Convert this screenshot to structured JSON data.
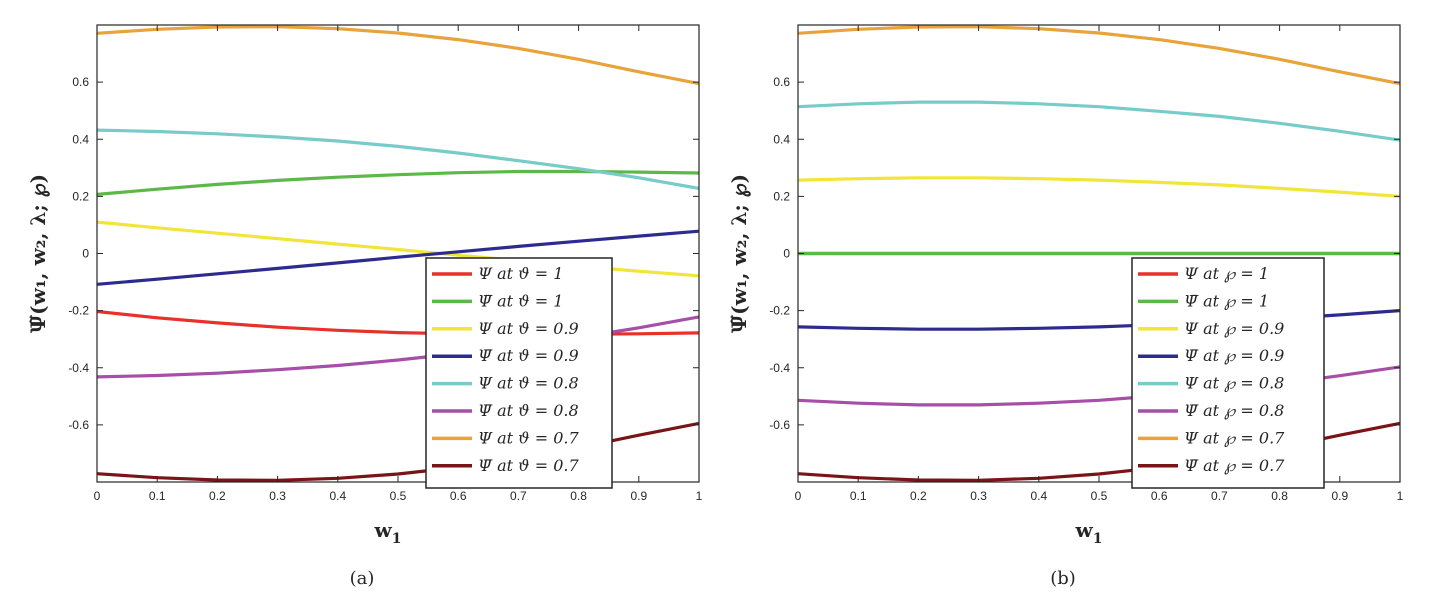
{
  "chart_data": [
    {
      "type": "line",
      "caption": "(a)",
      "xlabel": "w",
      "xlabel_sub": "1",
      "ylabel": "Ψ̃(w₁, w₂, λ; ℘)",
      "xlim": [
        0,
        1
      ],
      "ylim": [
        -0.8,
        0.8
      ],
      "xticks": [
        "0",
        "0.1",
        "0.2",
        "0.3",
        "0.4",
        "0.5",
        "0.6",
        "0.7",
        "0.8",
        "0.9",
        "1"
      ],
      "yticks": [
        "-0.6",
        "-0.4",
        "-0.2",
        "0",
        "0.2",
        "0.4",
        "0.6"
      ],
      "grid": false,
      "legend_position": "bottom-right",
      "x": [
        0,
        0.1,
        0.2,
        0.3,
        0.4,
        0.5,
        0.6,
        0.7,
        0.8,
        0.9,
        1
      ],
      "series": [
        {
          "name": "Ψ at ϑ = 1",
          "color": "#e8312a",
          "values": [
            -0.203,
            -0.225,
            -0.243,
            -0.258,
            -0.269,
            -0.277,
            -0.281,
            -0.284,
            -0.283,
            -0.281,
            -0.278
          ]
        },
        {
          "name": "Ψ̄ at ϑ = 1",
          "color": "#5db84a",
          "values": [
            0.207,
            0.225,
            0.242,
            0.256,
            0.267,
            0.276,
            0.283,
            0.287,
            0.287,
            0.285,
            0.282
          ]
        },
        {
          "name": "Ψ at ϑ = 0.9",
          "color": "#f2e53a",
          "values": [
            0.11,
            0.09,
            0.071,
            0.052,
            0.033,
            0.014,
            -0.006,
            -0.025,
            -0.044,
            -0.062,
            -0.078
          ]
        },
        {
          "name": "Ψ̄ at ϑ = 0.9",
          "color": "#2e2b8f",
          "values": [
            -0.108,
            -0.09,
            -0.071,
            -0.052,
            -0.033,
            -0.013,
            0.006,
            0.025,
            0.043,
            0.061,
            0.078
          ]
        },
        {
          "name": "Ψ at ϑ = 0.8",
          "color": "#77cbc8",
          "values": [
            0.432,
            0.427,
            0.419,
            0.408,
            0.394,
            0.375,
            0.352,
            0.325,
            0.297,
            0.265,
            0.228
          ]
        },
        {
          "name": "Ψ̄ at ϑ = 0.8",
          "color": "#a64ea8",
          "values": [
            -0.432,
            -0.427,
            -0.419,
            -0.407,
            -0.392,
            -0.373,
            -0.35,
            -0.324,
            -0.294,
            -0.26,
            -0.222
          ]
        },
        {
          "name": "Ψ at ϑ = 0.7",
          "color": "#e8a33a",
          "values": [
            0.771,
            0.785,
            0.793,
            0.794,
            0.787,
            0.772,
            0.749,
            0.718,
            0.68,
            0.636,
            0.595
          ]
        },
        {
          "name": "Ψ̄ at ϑ = 0.7",
          "color": "#7a1416",
          "values": [
            -0.771,
            -0.785,
            -0.793,
            -0.794,
            -0.787,
            -0.772,
            -0.749,
            -0.718,
            -0.68,
            -0.636,
            -0.595
          ]
        }
      ]
    },
    {
      "type": "line",
      "caption": "(b)",
      "xlabel": "w",
      "xlabel_sub": "1",
      "ylabel": "Ψ̃(w₁, w₂, λ; ℘)",
      "xlim": [
        0,
        1
      ],
      "ylim": [
        -0.8,
        0.8
      ],
      "xticks": [
        "0",
        "0.1",
        "0.2",
        "0.3",
        "0.4",
        "0.5",
        "0.6",
        "0.7",
        "0.8",
        "0.9",
        "1"
      ],
      "yticks": [
        "-0.6",
        "-0.4",
        "-0.2",
        "0",
        "0.2",
        "0.4",
        "0.6"
      ],
      "grid": false,
      "legend_position": "bottom-right",
      "x": [
        0,
        0.1,
        0.2,
        0.3,
        0.4,
        0.5,
        0.6,
        0.7,
        0.8,
        0.9,
        1
      ],
      "series": [
        {
          "name": "Ψ at ℘ = 1",
          "color": "#e8312a",
          "values": [
            0,
            0,
            0,
            0,
            0,
            0,
            0,
            0,
            0,
            0,
            0
          ]
        },
        {
          "name": "Ψ̄ at ℘ = 1",
          "color": "#5db84a",
          "values": [
            0,
            0,
            0,
            0,
            0,
            0,
            0,
            0,
            0,
            0,
            0
          ]
        },
        {
          "name": "Ψ at ℘ = 0.9",
          "color": "#f2e53a",
          "values": [
            0.257,
            0.262,
            0.265,
            0.265,
            0.262,
            0.257,
            0.249,
            0.24,
            0.228,
            0.215,
            0.2
          ]
        },
        {
          "name": "Ψ̄ at ℘ = 0.9",
          "color": "#2e2b8f",
          "values": [
            -0.257,
            -0.262,
            -0.265,
            -0.265,
            -0.262,
            -0.257,
            -0.249,
            -0.24,
            -0.228,
            -0.215,
            -0.2
          ]
        },
        {
          "name": "Ψ at ℘ = 0.8",
          "color": "#77cbc8",
          "values": [
            0.514,
            0.524,
            0.53,
            0.53,
            0.524,
            0.514,
            0.498,
            0.48,
            0.456,
            0.428,
            0.397
          ]
        },
        {
          "name": "Ψ̄ at ℘ = 0.8",
          "color": "#a64ea8",
          "values": [
            -0.514,
            -0.524,
            -0.53,
            -0.53,
            -0.524,
            -0.514,
            -0.498,
            -0.48,
            -0.456,
            -0.428,
            -0.397
          ]
        },
        {
          "name": "Ψ at ℘ = 0.7",
          "color": "#e8a33a",
          "values": [
            0.771,
            0.785,
            0.793,
            0.794,
            0.787,
            0.772,
            0.749,
            0.718,
            0.68,
            0.636,
            0.595
          ]
        },
        {
          "name": "Ψ̄ at ℘ = 0.7",
          "color": "#7a1416",
          "values": [
            -0.771,
            -0.785,
            -0.793,
            -0.794,
            -0.787,
            -0.772,
            -0.749,
            -0.718,
            -0.68,
            -0.636,
            -0.595
          ]
        }
      ]
    }
  ]
}
